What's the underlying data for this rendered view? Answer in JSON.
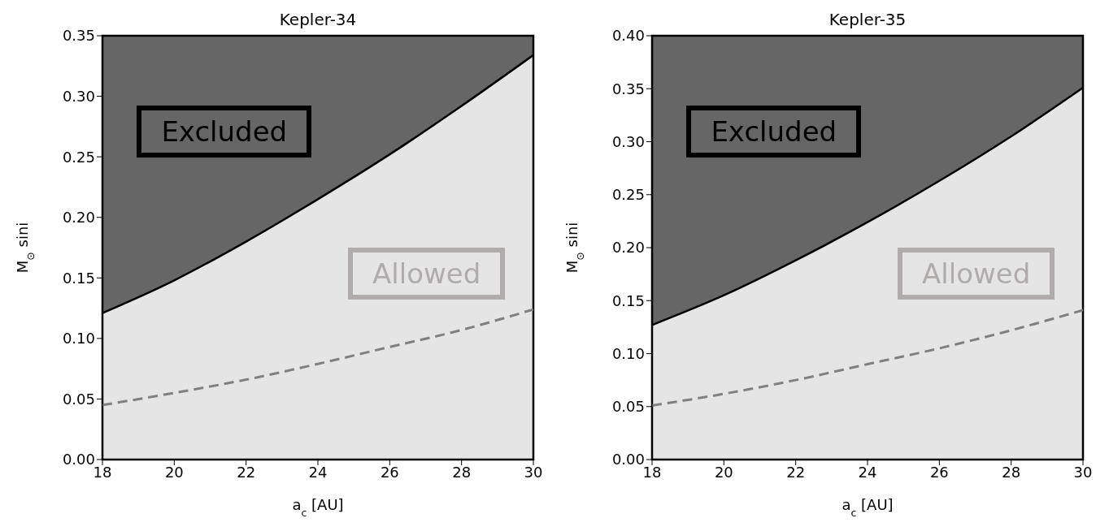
{
  "chart_data": [
    {
      "type": "line",
      "title": "Kepler-34",
      "xlabel": "a$_{c}$ [AU]",
      "ylabel": "M$_{⊙}$ sini",
      "x": [
        18,
        20,
        22,
        24,
        26,
        28,
        30
      ],
      "xlim": [
        18,
        30
      ],
      "xticks": [
        18,
        20,
        22,
        24,
        26,
        28,
        30
      ],
      "ylim": [
        0,
        0.35
      ],
      "yticks": [
        {
          "value": 0,
          "label": "0.00"
        },
        0.05,
        {
          "value": 0.1,
          "label": "0.10"
        },
        0.15,
        {
          "value": 0.2,
          "label": "0.20"
        },
        0.25,
        {
          "value": 0.3,
          "label": "0.30"
        },
        0.35
      ],
      "legend": false,
      "bands": [
        {
          "axis": "y",
          "from": 0,
          "to": 0.35,
          "color": "#666666"
        }
      ],
      "annotations": [
        "Excluded",
        "Allowed"
      ],
      "series": [
        {
          "type": "area",
          "color": "#e5e5e5",
          "values": [
            0.121,
            0.148,
            0.18,
            0.215,
            0.252,
            0.292,
            0.334
          ]
        },
        {
          "type": "line",
          "color": "#808080",
          "line_style": "dashed",
          "values": [
            0.045,
            0.055,
            0.066,
            0.079,
            0.093,
            0.107,
            0.124
          ]
        }
      ]
    },
    {
      "type": "line",
      "title": "Kepler-35",
      "xlabel": "a$_{c}$ [AU]",
      "ylabel": "M$_{⊙}$ sini",
      "x": [
        18,
        20,
        22,
        24,
        26,
        28,
        30
      ],
      "xlim": [
        18,
        30
      ],
      "xticks": [
        18,
        20,
        22,
        24,
        26,
        28,
        30
      ],
      "ylim": [
        0,
        0.4
      ],
      "yticks": [
        {
          "value": 0,
          "label": "0.00"
        },
        0.05,
        {
          "value": 0.1,
          "label": "0.10"
        },
        0.15,
        {
          "value": 0.2,
          "label": "0.20"
        },
        0.25,
        {
          "value": 0.3,
          "label": "0.30"
        },
        0.35,
        {
          "value": 0.4,
          "label": "0.40"
        }
      ],
      "legend": false,
      "bands": [
        {
          "axis": "y",
          "from": 0,
          "to": 0.4,
          "color": "#666666"
        }
      ],
      "annotations": [
        "Excluded",
        "Allowed"
      ],
      "series": [
        {
          "type": "area",
          "color": "#e5e5e5",
          "values": [
            0.127,
            0.155,
            0.188,
            0.224,
            0.263,
            0.305,
            0.351
          ]
        },
        {
          "type": "line",
          "color": "#808080",
          "line_style": "dashed",
          "values": [
            0.051,
            0.062,
            0.075,
            0.09,
            0.105,
            0.122,
            0.141
          ]
        }
      ]
    }
  ]
}
